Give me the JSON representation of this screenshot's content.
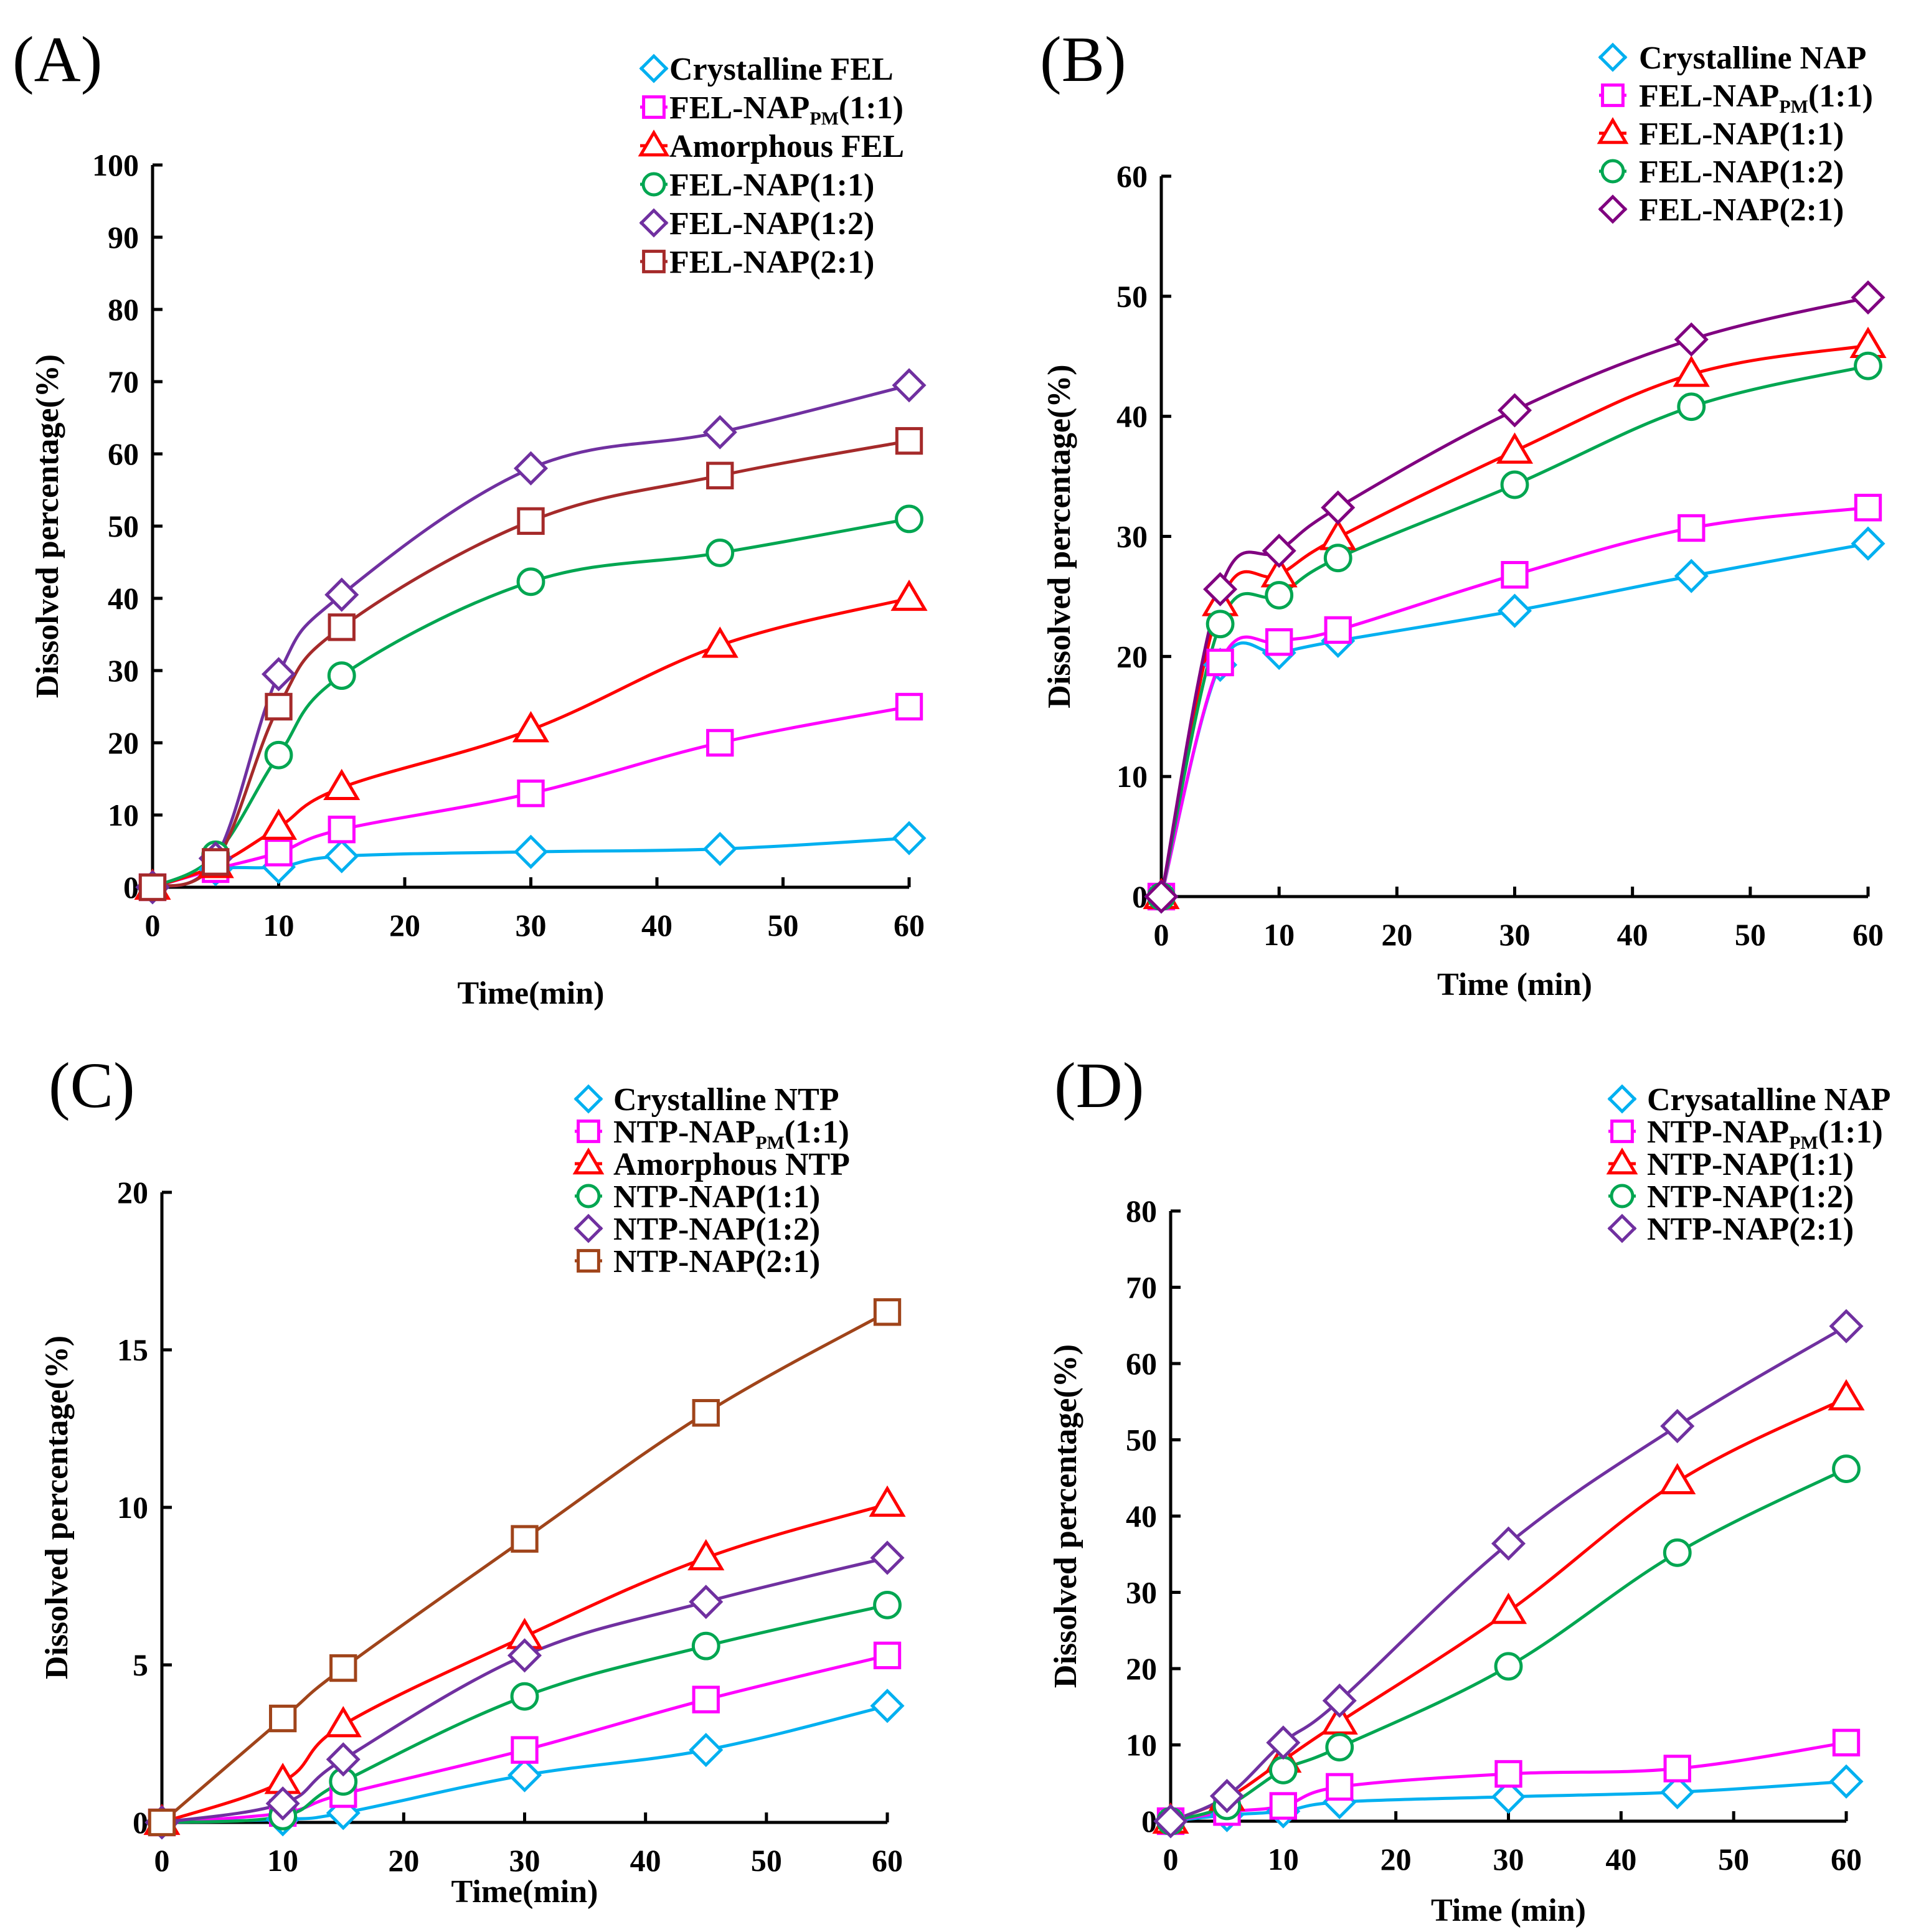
{
  "chart_data": [
    {
      "panel": "(A)",
      "type": "line",
      "xlabel": "Time(min)",
      "ylabel": "Dissolved percentage(%)",
      "xlim": [
        0,
        60
      ],
      "ylim": [
        0,
        100
      ],
      "xticks": [
        0,
        10,
        20,
        30,
        40,
        50,
        60
      ],
      "yticks": [
        0,
        10,
        20,
        30,
        40,
        50,
        60,
        70,
        80,
        90,
        100
      ],
      "legend_position": "top-right",
      "x": [
        0,
        5,
        10,
        15,
        30,
        45,
        60
      ],
      "series": [
        {
          "name": "Crystalline FEL",
          "name_main": "Crystalline FEL",
          "name_sub": "",
          "name_tail": "",
          "color": "#00b0f0",
          "marker": "diamond",
          "values": [
            0,
            2.5,
            2.8,
            4.3,
            4.9,
            5.3,
            6.8
          ]
        },
        {
          "name": "FEL-NAP PM (1:1)",
          "name_main": "FEL-NAP",
          "name_sub": "PM",
          "name_tail": "(1:1)",
          "color": "#ff00ff",
          "marker": "square",
          "values": [
            0,
            2.5,
            4.8,
            8.0,
            13.0,
            20.0,
            25.0
          ]
        },
        {
          "name": "Amorphous FEL",
          "name_main": "Amorphous FEL",
          "name_sub": "",
          "name_tail": "",
          "color": "#ff0000",
          "marker": "triangle",
          "values": [
            0,
            3.0,
            8.3,
            13.8,
            21.8,
            33.5,
            40.0
          ]
        },
        {
          "name": "FEL-NAP(1:1)",
          "name_main": "FEL-NAP(1:1)",
          "name_sub": "",
          "name_tail": "",
          "color": "#00a651",
          "marker": "circle",
          "values": [
            0,
            4.5,
            18.3,
            29.3,
            42.3,
            46.3,
            51.0
          ]
        },
        {
          "name": "FEL-NAP(1:2)",
          "name_main": "FEL-NAP(1:2)",
          "name_sub": "",
          "name_tail": "",
          "color": "#7030a0",
          "marker": "diamond",
          "values": [
            0,
            4.0,
            29.5,
            40.5,
            58.0,
            63.0,
            69.5
          ]
        },
        {
          "name": "FEL-NAP(2:1)",
          "name_main": "FEL-NAP(2:1)",
          "name_sub": "",
          "name_tail": "",
          "color": "#a52a2a",
          "marker": "square",
          "values": [
            0,
            3.5,
            25.0,
            36.0,
            50.7,
            57.0,
            61.8
          ]
        }
      ]
    },
    {
      "panel": "(B)",
      "type": "line",
      "xlabel": "Time (min)",
      "ylabel": "Dissolved percentage(%)",
      "xlim": [
        0,
        60
      ],
      "ylim": [
        0,
        60
      ],
      "xticks": [
        0,
        10,
        20,
        30,
        40,
        50,
        60
      ],
      "yticks": [
        0,
        10,
        20,
        30,
        40,
        50,
        60
      ],
      "legend_position": "top-right",
      "x": [
        0,
        5,
        10,
        15,
        30,
        45,
        60
      ],
      "series": [
        {
          "name": "Crystalline NAP",
          "name_main": "Crystalline NAP",
          "name_sub": "",
          "name_tail": "",
          "color": "#00b0f0",
          "marker": "diamond",
          "values": [
            0,
            19.3,
            20.3,
            21.3,
            23.8,
            26.7,
            29.4
          ]
        },
        {
          "name": "FEL-NAP PM (1:1)",
          "name_main": "FEL-NAP",
          "name_sub": "PM",
          "name_tail": "(1:1)",
          "color": "#ff00ff",
          "marker": "square",
          "values": [
            0,
            19.5,
            21.2,
            22.2,
            26.8,
            30.7,
            32.4
          ]
        },
        {
          "name": "FEL-NAP(1:1)",
          "name_main": "FEL-NAP(1:1)",
          "name_sub": "",
          "name_tail": "",
          "color": "#ff0000",
          "marker": "triangle",
          "values": [
            0,
            24.4,
            26.8,
            29.9,
            37.1,
            43.5,
            45.9
          ]
        },
        {
          "name": "FEL-NAP(1:2)",
          "name_main": "FEL-NAP(1:2)",
          "name_sub": "",
          "name_tail": "",
          "color": "#00a651",
          "marker": "circle",
          "values": [
            0,
            22.7,
            25.1,
            28.2,
            34.3,
            40.8,
            44.2
          ]
        },
        {
          "name": "FEL-NAP(2:1)",
          "name_main": "FEL-NAP(2:1)",
          "name_sub": "",
          "name_tail": "",
          "color": "#800080",
          "marker": "diamond",
          "values": [
            0,
            25.6,
            28.8,
            32.4,
            40.5,
            46.4,
            49.9
          ]
        }
      ]
    },
    {
      "panel": "(C)",
      "type": "line",
      "xlabel": "Time(min)",
      "ylabel": "Dissolved percentage(%)",
      "xlim": [
        0,
        60
      ],
      "ylim": [
        0,
        20
      ],
      "xticks": [
        0,
        10,
        20,
        30,
        40,
        50,
        60
      ],
      "yticks": [
        0,
        5,
        10,
        15,
        20
      ],
      "legend_position": "top-right",
      "x": [
        0,
        10,
        15,
        30,
        45,
        60
      ],
      "series": [
        {
          "name": "Crystalline NTP",
          "name_main": "Crystalline NTP",
          "name_sub": "",
          "name_tail": "",
          "color": "#00b0f0",
          "marker": "diamond",
          "values": [
            0,
            0.1,
            0.3,
            1.5,
            2.3,
            3.7
          ]
        },
        {
          "name": "NTP-NAP PM (1:1)",
          "name_main": "NTP-NAP",
          "name_sub": "PM",
          "name_tail": "(1:1)",
          "color": "#ff00ff",
          "marker": "square",
          "values": [
            0,
            0.3,
            0.9,
            2.3,
            3.9,
            5.3
          ]
        },
        {
          "name": "Amorphous NTP",
          "name_main": "Amorphous NTP",
          "name_sub": "",
          "name_tail": "",
          "color": "#ff0000",
          "marker": "triangle",
          "values": [
            0,
            1.3,
            3.1,
            5.9,
            8.4,
            10.1
          ]
        },
        {
          "name": "NTP-NAP(1:1)",
          "name_main": "NTP-NAP(1:1)",
          "name_sub": "",
          "name_tail": "",
          "color": "#00a651",
          "marker": "circle",
          "values": [
            0,
            0.2,
            1.3,
            4.0,
            5.6,
            6.9
          ]
        },
        {
          "name": "NTP-NAP(1:2)",
          "name_main": "NTP-NAP(1:2)",
          "name_sub": "",
          "name_tail": "",
          "color": "#7030a0",
          "marker": "diamond",
          "values": [
            0,
            0.6,
            2.0,
            5.3,
            7.0,
            8.4
          ]
        },
        {
          "name": "NTP-NAP(2:1)",
          "name_main": "NTP-NAP(2:1)",
          "name_sub": "",
          "name_tail": "",
          "color": "#a0441a",
          "marker": "square",
          "values": [
            0,
            3.3,
            4.9,
            9.0,
            13.0,
            16.2
          ]
        }
      ]
    },
    {
      "panel": "(D)",
      "type": "line",
      "xlabel": "Time (min)",
      "ylabel": "Dissolved percentage(%)",
      "xlim": [
        0,
        60
      ],
      "ylim": [
        0,
        80
      ],
      "xticks": [
        0,
        10,
        20,
        30,
        40,
        50,
        60
      ],
      "yticks": [
        0,
        10,
        20,
        30,
        40,
        50,
        60,
        70,
        80
      ],
      "legend_position": "top-right",
      "x": [
        0,
        5,
        10,
        15,
        30,
        45,
        60
      ],
      "series": [
        {
          "name": "Crysatalline NAP",
          "name_main": "Crysatalline NAP",
          "name_sub": "",
          "name_tail": "",
          "color": "#00b0f0",
          "marker": "diamond",
          "values": [
            0,
            0.8,
            1.3,
            2.5,
            3.2,
            3.8,
            5.2
          ]
        },
        {
          "name": "NTP-NAP PM (1:1)",
          "name_main": "NTP-NAP",
          "name_sub": "PM",
          "name_tail": "(1:1)",
          "color": "#ff00ff",
          "marker": "square",
          "values": [
            0,
            1.2,
            2.0,
            4.5,
            6.2,
            6.9,
            10.3
          ]
        },
        {
          "name": "NTP-NAP(1:1)",
          "name_main": "NTP-NAP(1:1)",
          "name_sub": "",
          "name_tail": "",
          "color": "#ff0000",
          "marker": "triangle",
          "values": [
            0,
            3.0,
            8.0,
            13.0,
            27.5,
            44.5,
            55.5
          ]
        },
        {
          "name": "NTP-NAP(1:2)",
          "name_main": "NTP-NAP(1:2)",
          "name_sub": "",
          "name_tail": "",
          "color": "#00a651",
          "marker": "circle",
          "values": [
            0,
            2.0,
            6.7,
            9.7,
            20.3,
            35.2,
            46.2
          ]
        },
        {
          "name": "NTP-NAP(2:1)",
          "name_main": "NTP-NAP(2:1)",
          "name_sub": "",
          "name_tail": "",
          "color": "#7030a0",
          "marker": "diamond",
          "values": [
            0,
            3.3,
            10.3,
            15.8,
            36.4,
            51.8,
            64.9
          ]
        }
      ]
    }
  ]
}
